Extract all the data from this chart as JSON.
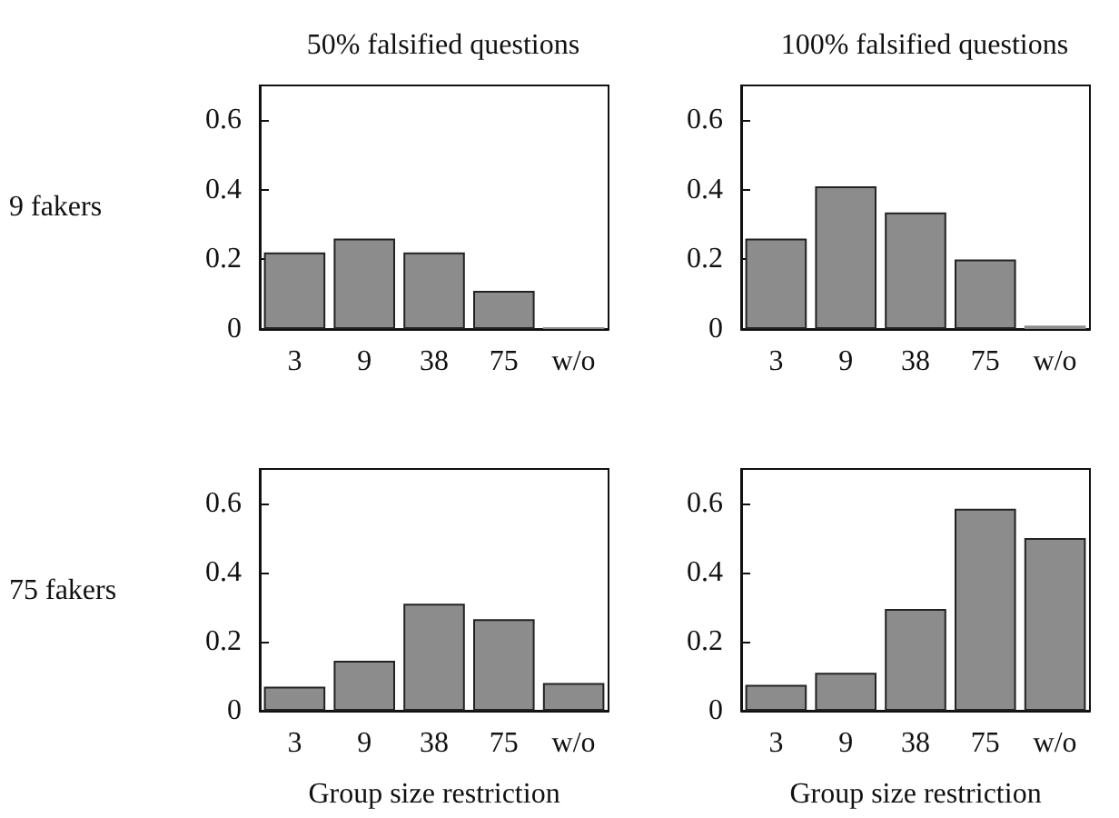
{
  "chart_data": [
    {
      "type": "bar",
      "title": "50% falsified questions",
      "ylabel": "9 fakers",
      "categories": [
        "3",
        "9",
        "38",
        "75",
        "w/o"
      ],
      "values": [
        0.22,
        0.26,
        0.22,
        0.11,
        0.005
      ],
      "color": "#8c8c8c",
      "ylim": [
        0,
        0.7
      ],
      "yticks": [
        0,
        0.2,
        0.4,
        0.6
      ],
      "grid": false
    },
    {
      "type": "bar",
      "title": "100% falsified questions",
      "categories": [
        "3",
        "9",
        "38",
        "75",
        "w/o"
      ],
      "values": [
        0.26,
        0.41,
        0.335,
        0.2,
        0.01
      ],
      "color": "#8c8c8c",
      "ylim": [
        0,
        0.7
      ],
      "yticks": [
        0,
        0.2,
        0.4,
        0.6
      ],
      "grid": false
    },
    {
      "type": "bar",
      "ylabel": "75 fakers",
      "xlabel": "Group size restriction",
      "categories": [
        "3",
        "9",
        "38",
        "75",
        "w/o"
      ],
      "values": [
        0.07,
        0.145,
        0.31,
        0.265,
        0.08
      ],
      "color": "#8c8c8c",
      "ylim": [
        0,
        0.7
      ],
      "yticks": [
        0,
        0.2,
        0.4,
        0.6
      ],
      "grid": false
    },
    {
      "type": "bar",
      "xlabel": "Group size restriction",
      "categories": [
        "3",
        "9",
        "38",
        "75",
        "w/o"
      ],
      "values": [
        0.075,
        0.11,
        0.295,
        0.585,
        0.5
      ],
      "color": "#8c8c8c",
      "ylim": [
        0,
        0.7
      ],
      "yticks": [
        0,
        0.2,
        0.4,
        0.6
      ],
      "grid": false
    }
  ]
}
